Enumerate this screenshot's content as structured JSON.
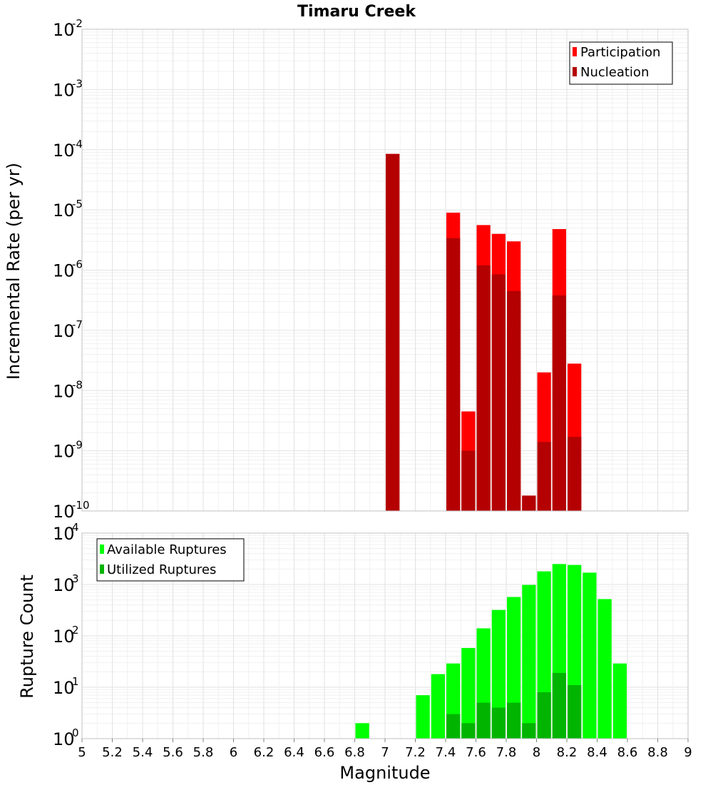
{
  "chart_data": [
    {
      "type": "bar",
      "title": "Timaru Creek",
      "xlabel": "Magnitude",
      "ylabel": "Incremental Rate (per yr)",
      "yscale": "log",
      "xlim": [
        5,
        9
      ],
      "ylim_exponents": [
        -10,
        -2
      ],
      "bin_width": 0.1,
      "legend_position": "top-right",
      "grid": true,
      "colors": {
        "Participation": "#ff0000",
        "Nucleation": "#b40000"
      },
      "series": [
        {
          "name": "Participation",
          "x": [
            7.05,
            7.45,
            7.55,
            7.65,
            7.75,
            7.85,
            7.95,
            8.05,
            8.15,
            8.25
          ],
          "values": [
            8.5e-05,
            9e-06,
            4.5e-09,
            5.6e-06,
            4e-06,
            3e-06,
            1.8e-10,
            2e-08,
            4.8e-06,
            2.8e-08
          ]
        },
        {
          "name": "Nucleation",
          "x": [
            7.05,
            7.45,
            7.55,
            7.65,
            7.75,
            7.85,
            7.95,
            8.05,
            8.15,
            8.25
          ],
          "values": [
            8.5e-05,
            3.4e-06,
            1e-09,
            1.2e-06,
            8.5e-07,
            4.5e-07,
            1.8e-10,
            1.4e-09,
            3.8e-07,
            1.7e-09
          ]
        }
      ]
    },
    {
      "type": "bar",
      "title": "",
      "xlabel": "Magnitude",
      "ylabel": "Rupture Count",
      "yscale": "log",
      "xlim": [
        5,
        9
      ],
      "ylim_exponents": [
        0,
        4
      ],
      "bin_width": 0.1,
      "legend_position": "top-left",
      "grid": true,
      "x_ticks": [
        "5",
        "5.2",
        "5.4",
        "5.6",
        "5.8",
        "6",
        "6.2",
        "6.4",
        "6.6",
        "6.8",
        "7",
        "7.2",
        "7.4",
        "7.6",
        "7.8",
        "8",
        "8.2",
        "8.4",
        "8.6",
        "8.8",
        "9"
      ],
      "colors": {
        "Available Ruptures": "#00ff00",
        "Utilized Ruptures": "#00b400"
      },
      "series": [
        {
          "name": "Available Ruptures",
          "x": [
            6.85,
            7.05,
            7.15,
            7.25,
            7.35,
            7.45,
            7.55,
            7.65,
            7.75,
            7.85,
            7.95,
            8.05,
            8.15,
            8.25,
            8.35,
            8.45,
            8.55
          ],
          "values": [
            2,
            1,
            1,
            7,
            18,
            29,
            58,
            140,
            320,
            570,
            980,
            1800,
            2500,
            2400,
            1700,
            520,
            29
          ]
        },
        {
          "name": "Utilized Ruptures",
          "x": [
            7.05,
            7.45,
            7.55,
            7.65,
            7.75,
            7.85,
            7.95,
            8.05,
            8.15,
            8.25
          ],
          "values": [
            1,
            3,
            2,
            5,
            4,
            5,
            2,
            8,
            19,
            11
          ]
        }
      ]
    }
  ]
}
